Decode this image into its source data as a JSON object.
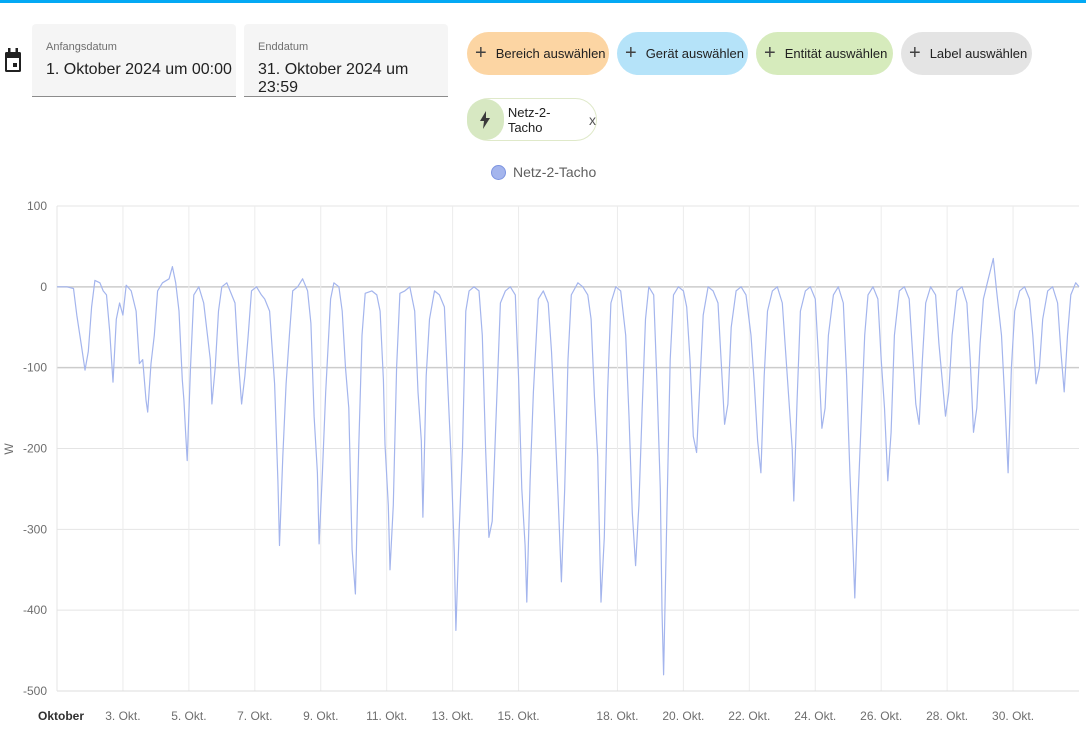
{
  "date_range": {
    "start_label": "Anfangsdatum",
    "start_value": "1. Oktober 2024 um 00:00",
    "end_label": "Enddatum",
    "end_value": "31. Oktober 2024 um 23:59"
  },
  "targets": {
    "area_label": "Bereich auswählen",
    "device_label": "Gerät auswählen",
    "entity_label": "Entität auswählen",
    "label_label": "Label auswählen",
    "area_color": "#fcd5a3",
    "device_color": "#b5e3f9",
    "entity_color": "#d6ebbc",
    "label_color": "#e4e4e4"
  },
  "selected_entity": {
    "name": "Netz-2-Tacho",
    "icon": "lightning-bolt-icon",
    "remove_symbol": "x"
  },
  "chart_data": {
    "type": "line",
    "legend": [
      "Netz-2-Tacho"
    ],
    "series": [
      {
        "name": "Netz-2-Tacho",
        "color": "#a4b5ed",
        "points": [
          [
            1.0,
            0
          ],
          [
            1.3,
            0
          ],
          [
            1.5,
            -2
          ],
          [
            1.6,
            -35
          ],
          [
            1.75,
            -75
          ],
          [
            1.85,
            -103
          ],
          [
            1.95,
            -80
          ],
          [
            2.05,
            -25
          ],
          [
            2.15,
            8
          ],
          [
            2.3,
            5
          ],
          [
            2.4,
            -5
          ],
          [
            2.5,
            -10
          ],
          [
            2.6,
            -55
          ],
          [
            2.7,
            -118
          ],
          [
            2.8,
            -40
          ],
          [
            2.9,
            -20
          ],
          [
            3.0,
            -35
          ],
          [
            3.1,
            2
          ],
          [
            3.25,
            -5
          ],
          [
            3.4,
            -30
          ],
          [
            3.5,
            -95
          ],
          [
            3.6,
            -90
          ],
          [
            3.7,
            -140
          ],
          [
            3.75,
            -155
          ],
          [
            3.85,
            -95
          ],
          [
            3.95,
            -60
          ],
          [
            4.05,
            -5
          ],
          [
            4.2,
            5
          ],
          [
            4.4,
            10
          ],
          [
            4.5,
            25
          ],
          [
            4.6,
            5
          ],
          [
            4.7,
            -30
          ],
          [
            4.8,
            -115
          ],
          [
            4.85,
            -140
          ],
          [
            4.9,
            -180
          ],
          [
            4.95,
            -215
          ],
          [
            5.05,
            -100
          ],
          [
            5.15,
            -10
          ],
          [
            5.3,
            0
          ],
          [
            5.45,
            -20
          ],
          [
            5.55,
            -55
          ],
          [
            5.65,
            -90
          ],
          [
            5.7,
            -145
          ],
          [
            5.8,
            -100
          ],
          [
            5.9,
            -30
          ],
          [
            6.0,
            0
          ],
          [
            6.15,
            5
          ],
          [
            6.3,
            -10
          ],
          [
            6.4,
            -20
          ],
          [
            6.5,
            -90
          ],
          [
            6.6,
            -145
          ],
          [
            6.7,
            -110
          ],
          [
            6.8,
            -60
          ],
          [
            6.9,
            -5
          ],
          [
            7.05,
            0
          ],
          [
            7.2,
            -10
          ],
          [
            7.3,
            -15
          ],
          [
            7.45,
            -30
          ],
          [
            7.6,
            -120
          ],
          [
            7.7,
            -240
          ],
          [
            7.75,
            -320
          ],
          [
            7.85,
            -210
          ],
          [
            7.95,
            -120
          ],
          [
            8.05,
            -60
          ],
          [
            8.15,
            -5
          ],
          [
            8.3,
            0
          ],
          [
            8.45,
            10
          ],
          [
            8.6,
            -5
          ],
          [
            8.7,
            -45
          ],
          [
            8.8,
            -160
          ],
          [
            8.9,
            -230
          ],
          [
            8.95,
            -318
          ],
          [
            9.05,
            -230
          ],
          [
            9.15,
            -130
          ],
          [
            9.3,
            -15
          ],
          [
            9.4,
            5
          ],
          [
            9.55,
            0
          ],
          [
            9.65,
            -30
          ],
          [
            9.75,
            -100
          ],
          [
            9.85,
            -150
          ],
          [
            9.95,
            -325
          ],
          [
            10.05,
            -380
          ],
          [
            10.15,
            -200
          ],
          [
            10.25,
            -60
          ],
          [
            10.35,
            -8
          ],
          [
            10.55,
            -5
          ],
          [
            10.7,
            -10
          ],
          [
            10.8,
            -30
          ],
          [
            10.9,
            -115
          ],
          [
            10.95,
            -195
          ],
          [
            11.05,
            -270
          ],
          [
            11.1,
            -350
          ],
          [
            11.2,
            -270
          ],
          [
            11.3,
            -100
          ],
          [
            11.4,
            -8
          ],
          [
            11.55,
            -5
          ],
          [
            11.7,
            0
          ],
          [
            11.85,
            -30
          ],
          [
            11.95,
            -130
          ],
          [
            12.05,
            -190
          ],
          [
            12.1,
            -285
          ],
          [
            12.2,
            -110
          ],
          [
            12.3,
            -40
          ],
          [
            12.45,
            -5
          ],
          [
            12.6,
            -10
          ],
          [
            12.75,
            -25
          ],
          [
            12.85,
            -120
          ],
          [
            12.95,
            -210
          ],
          [
            13.05,
            -330
          ],
          [
            13.1,
            -425
          ],
          [
            13.2,
            -300
          ],
          [
            13.3,
            -200
          ],
          [
            13.4,
            -30
          ],
          [
            13.5,
            -5
          ],
          [
            13.65,
            0
          ],
          [
            13.8,
            -5
          ],
          [
            13.9,
            -60
          ],
          [
            14.0,
            -200
          ],
          [
            14.1,
            -310
          ],
          [
            14.2,
            -290
          ],
          [
            14.3,
            -180
          ],
          [
            14.45,
            -20
          ],
          [
            14.6,
            -5
          ],
          [
            14.75,
            0
          ],
          [
            14.9,
            -10
          ],
          [
            15.0,
            -110
          ],
          [
            15.1,
            -250
          ],
          [
            15.2,
            -320
          ],
          [
            15.25,
            -390
          ],
          [
            15.35,
            -240
          ],
          [
            15.45,
            -130
          ],
          [
            15.6,
            -15
          ],
          [
            15.75,
            -5
          ],
          [
            15.9,
            -20
          ],
          [
            16.0,
            -80
          ],
          [
            16.1,
            -165
          ],
          [
            16.2,
            -260
          ],
          [
            16.3,
            -365
          ],
          [
            16.4,
            -250
          ],
          [
            16.5,
            -90
          ],
          [
            16.6,
            -10
          ],
          [
            16.8,
            5
          ],
          [
            16.95,
            0
          ],
          [
            17.1,
            -10
          ],
          [
            17.2,
            -40
          ],
          [
            17.3,
            -135
          ],
          [
            17.4,
            -210
          ],
          [
            17.5,
            -390
          ],
          [
            17.6,
            -310
          ],
          [
            17.7,
            -130
          ],
          [
            17.8,
            -20
          ],
          [
            17.95,
            0
          ],
          [
            18.1,
            -5
          ],
          [
            18.25,
            -60
          ],
          [
            18.35,
            -160
          ],
          [
            18.45,
            -280
          ],
          [
            18.55,
            -345
          ],
          [
            18.65,
            -270
          ],
          [
            18.75,
            -150
          ],
          [
            18.85,
            -40
          ],
          [
            18.95,
            0
          ],
          [
            19.1,
            -10
          ],
          [
            19.2,
            -120
          ],
          [
            19.3,
            -250
          ],
          [
            19.35,
            -400
          ],
          [
            19.4,
            -480
          ],
          [
            19.5,
            -280
          ],
          [
            19.6,
            -90
          ],
          [
            19.7,
            -10
          ],
          [
            19.85,
            0
          ],
          [
            20.0,
            -5
          ],
          [
            20.1,
            -25
          ],
          [
            20.2,
            -90
          ],
          [
            20.3,
            -185
          ],
          [
            20.4,
            -205
          ],
          [
            20.5,
            -120
          ],
          [
            20.6,
            -35
          ],
          [
            20.75,
            0
          ],
          [
            20.9,
            -5
          ],
          [
            21.05,
            -20
          ],
          [
            21.15,
            -95
          ],
          [
            21.25,
            -170
          ],
          [
            21.35,
            -145
          ],
          [
            21.45,
            -50
          ],
          [
            21.6,
            -5
          ],
          [
            21.75,
            0
          ],
          [
            21.9,
            -10
          ],
          [
            22.05,
            -60
          ],
          [
            22.15,
            -120
          ],
          [
            22.25,
            -190
          ],
          [
            22.35,
            -230
          ],
          [
            22.45,
            -110
          ],
          [
            22.55,
            -30
          ],
          [
            22.7,
            -5
          ],
          [
            22.85,
            0
          ],
          [
            23.0,
            -20
          ],
          [
            23.1,
            -80
          ],
          [
            23.2,
            -140
          ],
          [
            23.3,
            -200
          ],
          [
            23.35,
            -265
          ],
          [
            23.45,
            -140
          ],
          [
            23.55,
            -30
          ],
          [
            23.7,
            -5
          ],
          [
            23.85,
            0
          ],
          [
            24.0,
            -15
          ],
          [
            24.1,
            -90
          ],
          [
            24.2,
            -175
          ],
          [
            24.3,
            -150
          ],
          [
            24.4,
            -60
          ],
          [
            24.55,
            -10
          ],
          [
            24.7,
            0
          ],
          [
            24.85,
            -20
          ],
          [
            24.95,
            -110
          ],
          [
            25.05,
            -230
          ],
          [
            25.15,
            -330
          ],
          [
            25.2,
            -385
          ],
          [
            25.3,
            -260
          ],
          [
            25.4,
            -160
          ],
          [
            25.5,
            -60
          ],
          [
            25.6,
            -10
          ],
          [
            25.75,
            0
          ],
          [
            25.9,
            -15
          ],
          [
            26.0,
            -90
          ],
          [
            26.1,
            -150
          ],
          [
            26.2,
            -240
          ],
          [
            26.3,
            -180
          ],
          [
            26.4,
            -60
          ],
          [
            26.55,
            -5
          ],
          [
            26.7,
            0
          ],
          [
            26.85,
            -15
          ],
          [
            26.95,
            -80
          ],
          [
            27.05,
            -145
          ],
          [
            27.15,
            -170
          ],
          [
            27.25,
            -90
          ],
          [
            27.35,
            -20
          ],
          [
            27.5,
            0
          ],
          [
            27.65,
            -10
          ],
          [
            27.75,
            -70
          ],
          [
            27.85,
            -115
          ],
          [
            27.95,
            -160
          ],
          [
            28.05,
            -130
          ],
          [
            28.15,
            -60
          ],
          [
            28.3,
            -5
          ],
          [
            28.45,
            0
          ],
          [
            28.6,
            -20
          ],
          [
            28.7,
            -90
          ],
          [
            28.8,
            -180
          ],
          [
            28.9,
            -150
          ],
          [
            29.0,
            -70
          ],
          [
            29.1,
            -15
          ],
          [
            29.25,
            10
          ],
          [
            29.4,
            35
          ],
          [
            29.5,
            -5
          ],
          [
            29.65,
            -60
          ],
          [
            29.75,
            -140
          ],
          [
            29.85,
            -230
          ],
          [
            29.95,
            -100
          ],
          [
            30.05,
            -30
          ],
          [
            30.2,
            -5
          ],
          [
            30.35,
            0
          ],
          [
            30.5,
            -15
          ],
          [
            30.6,
            -60
          ],
          [
            30.7,
            -120
          ],
          [
            30.8,
            -100
          ],
          [
            30.9,
            -40
          ],
          [
            31.05,
            -5
          ],
          [
            31.2,
            0
          ],
          [
            31.35,
            -20
          ],
          [
            31.45,
            -80
          ],
          [
            31.55,
            -130
          ],
          [
            31.65,
            -60
          ],
          [
            31.75,
            -10
          ],
          [
            31.9,
            5
          ],
          [
            32.0,
            0
          ]
        ]
      }
    ],
    "x_ticks": [
      {
        "day": 1,
        "label": "Oktober",
        "bold": true
      },
      {
        "day": 3,
        "label": "3. Okt."
      },
      {
        "day": 5,
        "label": "5. Okt."
      },
      {
        "day": 7,
        "label": "7. Okt."
      },
      {
        "day": 9,
        "label": "9. Okt."
      },
      {
        "day": 11,
        "label": "11. Okt."
      },
      {
        "day": 13,
        "label": "13. Okt."
      },
      {
        "day": 15,
        "label": "15. Okt."
      },
      {
        "day": 18,
        "label": "18. Okt."
      },
      {
        "day": 20,
        "label": "20. Okt."
      },
      {
        "day": 22,
        "label": "22. Okt."
      },
      {
        "day": 24,
        "label": "24. Okt."
      },
      {
        "day": 26,
        "label": "26. Okt."
      },
      {
        "day": 28,
        "label": "28. Okt."
      },
      {
        "day": 30,
        "label": "30. Okt."
      }
    ],
    "y_ticks": [
      100,
      0,
      -100,
      -200,
      -300,
      -400,
      -500
    ],
    "ylabel": "W",
    "ylim": [
      -500,
      100
    ],
    "xlim": [
      "1. Oktober 2024",
      "1. November 2024"
    ],
    "grid": true,
    "legend_position": "top"
  }
}
